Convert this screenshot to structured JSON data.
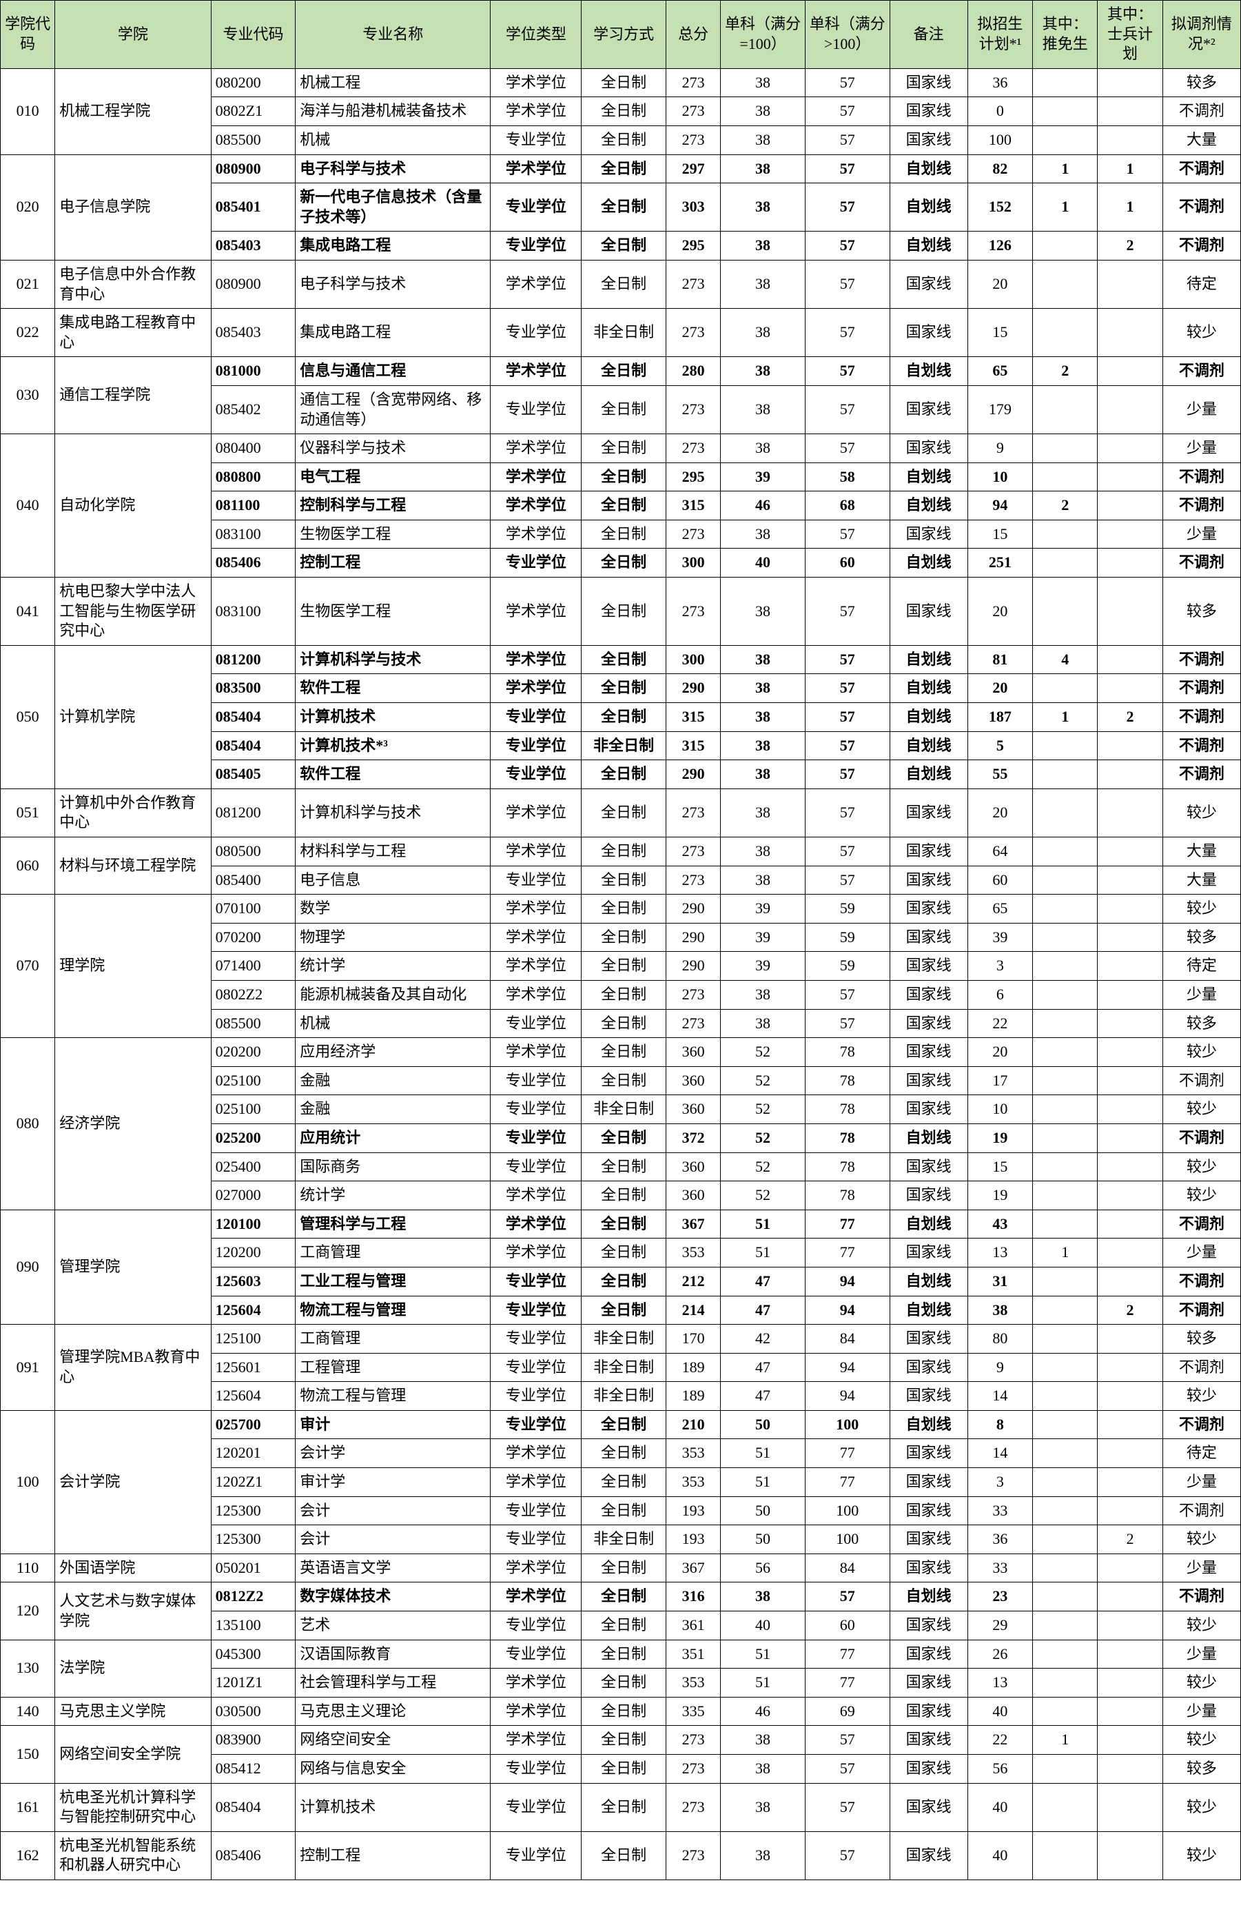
{
  "headers": {
    "college_code": "学院代码",
    "college": "学院",
    "major_code": "专业代码",
    "major_name": "专业名称",
    "degree_type": "学位类型",
    "study_mode": "学习方式",
    "total": "总分",
    "single_le100": "单科（满分=100）",
    "single_gt100": "单科（满分>100）",
    "remark": "备注",
    "plan": "拟招生计划*¹",
    "rec": "其中：推免生",
    "sb": "其中：士兵计划",
    "adj": "拟调剂情况*²"
  },
  "groups": [
    {
      "code": "010",
      "college": "机械工程学院",
      "rows": [
        {
          "b": 0,
          "mc": "080200",
          "mn": "机械工程",
          "dt": "学术学位",
          "sm": "全日制",
          "t": "273",
          "s1": "38",
          "s2": "57",
          "rm": "国家线",
          "pl": "36",
          "rc": "",
          "sb": "",
          "ad": "较多"
        },
        {
          "b": 0,
          "mc": "0802Z1",
          "mn": "海洋与船港机械装备技术",
          "dt": "学术学位",
          "sm": "全日制",
          "t": "273",
          "s1": "38",
          "s2": "57",
          "rm": "国家线",
          "pl": "0",
          "rc": "",
          "sb": "",
          "ad": "不调剂"
        },
        {
          "b": 0,
          "mc": "085500",
          "mn": "机械",
          "dt": "专业学位",
          "sm": "全日制",
          "t": "273",
          "s1": "38",
          "s2": "57",
          "rm": "国家线",
          "pl": "100",
          "rc": "",
          "sb": "",
          "ad": "大量"
        }
      ]
    },
    {
      "code": "020",
      "college": "电子信息学院",
      "rows": [
        {
          "b": 1,
          "mc": "080900",
          "mn": "电子科学与技术",
          "dt": "学术学位",
          "sm": "全日制",
          "t": "297",
          "s1": "38",
          "s2": "57",
          "rm": "自划线",
          "pl": "82",
          "rc": "1",
          "sb": "1",
          "ad": "不调剂"
        },
        {
          "b": 1,
          "mc": "085401",
          "mn": "新一代电子信息技术（含量子技术等）",
          "dt": "专业学位",
          "sm": "全日制",
          "t": "303",
          "s1": "38",
          "s2": "57",
          "rm": "自划线",
          "pl": "152",
          "rc": "1",
          "sb": "1",
          "ad": "不调剂"
        },
        {
          "b": 1,
          "mc": "085403",
          "mn": "集成电路工程",
          "dt": "专业学位",
          "sm": "全日制",
          "t": "295",
          "s1": "38",
          "s2": "57",
          "rm": "自划线",
          "pl": "126",
          "rc": "",
          "sb": "2",
          "ad": "不调剂"
        }
      ]
    },
    {
      "code": "021",
      "college": "电子信息中外合作教育中心",
      "rows": [
        {
          "b": 0,
          "mc": "080900",
          "mn": "电子科学与技术",
          "dt": "学术学位",
          "sm": "全日制",
          "t": "273",
          "s1": "38",
          "s2": "57",
          "rm": "国家线",
          "pl": "20",
          "rc": "",
          "sb": "",
          "ad": "待定"
        }
      ]
    },
    {
      "code": "022",
      "college": "集成电路工程教育中心",
      "rows": [
        {
          "b": 0,
          "mc": "085403",
          "mn": "集成电路工程",
          "dt": "专业学位",
          "sm": "非全日制",
          "t": "273",
          "s1": "38",
          "s2": "57",
          "rm": "国家线",
          "pl": "15",
          "rc": "",
          "sb": "",
          "ad": "较少"
        }
      ]
    },
    {
      "code": "030",
      "college": "通信工程学院",
      "rows": [
        {
          "b": 1,
          "mc": "081000",
          "mn": "信息与通信工程",
          "dt": "学术学位",
          "sm": "全日制",
          "t": "280",
          "s1": "38",
          "s2": "57",
          "rm": "自划线",
          "pl": "65",
          "rc": "2",
          "sb": "",
          "ad": "不调剂"
        },
        {
          "b": 0,
          "mc": "085402",
          "mn": "通信工程（含宽带网络、移动通信等）",
          "dt": "专业学位",
          "sm": "全日制",
          "t": "273",
          "s1": "38",
          "s2": "57",
          "rm": "国家线",
          "pl": "179",
          "rc": "",
          "sb": "",
          "ad": "少量"
        }
      ]
    },
    {
      "code": "040",
      "college": "自动化学院",
      "rows": [
        {
          "b": 0,
          "mc": "080400",
          "mn": "仪器科学与技术",
          "dt": "学术学位",
          "sm": "全日制",
          "t": "273",
          "s1": "38",
          "s2": "57",
          "rm": "国家线",
          "pl": "9",
          "rc": "",
          "sb": "",
          "ad": "少量"
        },
        {
          "b": 1,
          "mc": "080800",
          "mn": "电气工程",
          "dt": "学术学位",
          "sm": "全日制",
          "t": "295",
          "s1": "39",
          "s2": "58",
          "rm": "自划线",
          "pl": "10",
          "rc": "",
          "sb": "",
          "ad": "不调剂"
        },
        {
          "b": 1,
          "mc": "081100",
          "mn": "控制科学与工程",
          "dt": "学术学位",
          "sm": "全日制",
          "t": "315",
          "s1": "46",
          "s2": "68",
          "rm": "自划线",
          "pl": "94",
          "rc": "2",
          "sb": "",
          "ad": "不调剂"
        },
        {
          "b": 0,
          "mc": "083100",
          "mn": "生物医学工程",
          "dt": "学术学位",
          "sm": "全日制",
          "t": "273",
          "s1": "38",
          "s2": "57",
          "rm": "国家线",
          "pl": "15",
          "rc": "",
          "sb": "",
          "ad": "少量"
        },
        {
          "b": 1,
          "mc": "085406",
          "mn": "控制工程",
          "dt": "专业学位",
          "sm": "全日制",
          "t": "300",
          "s1": "40",
          "s2": "60",
          "rm": "自划线",
          "pl": "251",
          "rc": "",
          "sb": "",
          "ad": "不调剂"
        }
      ]
    },
    {
      "code": "041",
      "college": "杭电巴黎大学中法人工智能与生物医学研究中心",
      "rows": [
        {
          "b": 0,
          "mc": "083100",
          "mn": "生物医学工程",
          "dt": "学术学位",
          "sm": "全日制",
          "t": "273",
          "s1": "38",
          "s2": "57",
          "rm": "国家线",
          "pl": "20",
          "rc": "",
          "sb": "",
          "ad": "较多"
        }
      ]
    },
    {
      "code": "050",
      "college": "计算机学院",
      "rows": [
        {
          "b": 1,
          "mc": "081200",
          "mn": "计算机科学与技术",
          "dt": "学术学位",
          "sm": "全日制",
          "t": "300",
          "s1": "38",
          "s2": "57",
          "rm": "自划线",
          "pl": "81",
          "rc": "4",
          "sb": "",
          "ad": "不调剂"
        },
        {
          "b": 1,
          "mc": "083500",
          "mn": "软件工程",
          "dt": "学术学位",
          "sm": "全日制",
          "t": "290",
          "s1": "38",
          "s2": "57",
          "rm": "自划线",
          "pl": "20",
          "rc": "",
          "sb": "",
          "ad": "不调剂"
        },
        {
          "b": 1,
          "mc": "085404",
          "mn": "计算机技术",
          "dt": "专业学位",
          "sm": "全日制",
          "t": "315",
          "s1": "38",
          "s2": "57",
          "rm": "自划线",
          "pl": "187",
          "rc": "1",
          "sb": "2",
          "ad": "不调剂"
        },
        {
          "b": 1,
          "mc": "085404",
          "mn": "计算机技术*³",
          "dt": "专业学位",
          "sm": "非全日制",
          "t": "315",
          "s1": "38",
          "s2": "57",
          "rm": "自划线",
          "pl": "5",
          "rc": "",
          "sb": "",
          "ad": "不调剂"
        },
        {
          "b": 1,
          "mc": "085405",
          "mn": "软件工程",
          "dt": "专业学位",
          "sm": "全日制",
          "t": "290",
          "s1": "38",
          "s2": "57",
          "rm": "自划线",
          "pl": "55",
          "rc": "",
          "sb": "",
          "ad": "不调剂"
        }
      ]
    },
    {
      "code": "051",
      "college": "计算机中外合作教育中心",
      "rows": [
        {
          "b": 0,
          "mc": "081200",
          "mn": "计算机科学与技术",
          "dt": "学术学位",
          "sm": "全日制",
          "t": "273",
          "s1": "38",
          "s2": "57",
          "rm": "国家线",
          "pl": "20",
          "rc": "",
          "sb": "",
          "ad": "较少"
        }
      ]
    },
    {
      "code": "060",
      "college": "材料与环境工程学院",
      "rows": [
        {
          "b": 0,
          "mc": "080500",
          "mn": "材料科学与工程",
          "dt": "学术学位",
          "sm": "全日制",
          "t": "273",
          "s1": "38",
          "s2": "57",
          "rm": "国家线",
          "pl": "64",
          "rc": "",
          "sb": "",
          "ad": "大量"
        },
        {
          "b": 0,
          "mc": "085400",
          "mn": "电子信息",
          "dt": "专业学位",
          "sm": "全日制",
          "t": "273",
          "s1": "38",
          "s2": "57",
          "rm": "国家线",
          "pl": "60",
          "rc": "",
          "sb": "",
          "ad": "大量"
        }
      ]
    },
    {
      "code": "070",
      "college": "理学院",
      "rows": [
        {
          "b": 0,
          "mc": "070100",
          "mn": "数学",
          "dt": "学术学位",
          "sm": "全日制",
          "t": "290",
          "s1": "39",
          "s2": "59",
          "rm": "国家线",
          "pl": "65",
          "rc": "",
          "sb": "",
          "ad": "较少"
        },
        {
          "b": 0,
          "mc": "070200",
          "mn": "物理学",
          "dt": "学术学位",
          "sm": "全日制",
          "t": "290",
          "s1": "39",
          "s2": "59",
          "rm": "国家线",
          "pl": "39",
          "rc": "",
          "sb": "",
          "ad": "较多"
        },
        {
          "b": 0,
          "mc": "071400",
          "mn": "统计学",
          "dt": "学术学位",
          "sm": "全日制",
          "t": "290",
          "s1": "39",
          "s2": "59",
          "rm": "国家线",
          "pl": "3",
          "rc": "",
          "sb": "",
          "ad": "待定"
        },
        {
          "b": 0,
          "mc": "0802Z2",
          "mn": "能源机械装备及其自动化",
          "dt": "学术学位",
          "sm": "全日制",
          "t": "273",
          "s1": "38",
          "s2": "57",
          "rm": "国家线",
          "pl": "6",
          "rc": "",
          "sb": "",
          "ad": "少量"
        },
        {
          "b": 0,
          "mc": "085500",
          "mn": "机械",
          "dt": "专业学位",
          "sm": "全日制",
          "t": "273",
          "s1": "38",
          "s2": "57",
          "rm": "国家线",
          "pl": "22",
          "rc": "",
          "sb": "",
          "ad": "较多"
        }
      ]
    },
    {
      "code": "080",
      "college": "经济学院",
      "rows": [
        {
          "b": 0,
          "mc": "020200",
          "mn": "应用经济学",
          "dt": "学术学位",
          "sm": "全日制",
          "t": "360",
          "s1": "52",
          "s2": "78",
          "rm": "国家线",
          "pl": "20",
          "rc": "",
          "sb": "",
          "ad": "较少"
        },
        {
          "b": 0,
          "mc": "025100",
          "mn": "金融",
          "dt": "专业学位",
          "sm": "全日制",
          "t": "360",
          "s1": "52",
          "s2": "78",
          "rm": "国家线",
          "pl": "17",
          "rc": "",
          "sb": "",
          "ad": "不调剂"
        },
        {
          "b": 0,
          "mc": "025100",
          "mn": "金融",
          "dt": "专业学位",
          "sm": "非全日制",
          "t": "360",
          "s1": "52",
          "s2": "78",
          "rm": "国家线",
          "pl": "10",
          "rc": "",
          "sb": "",
          "ad": "较少"
        },
        {
          "b": 1,
          "mc": "025200",
          "mn": "应用统计",
          "dt": "专业学位",
          "sm": "全日制",
          "t": "372",
          "s1": "52",
          "s2": "78",
          "rm": "自划线",
          "pl": "19",
          "rc": "",
          "sb": "",
          "ad": "不调剂"
        },
        {
          "b": 0,
          "mc": "025400",
          "mn": "国际商务",
          "dt": "专业学位",
          "sm": "全日制",
          "t": "360",
          "s1": "52",
          "s2": "78",
          "rm": "国家线",
          "pl": "15",
          "rc": "",
          "sb": "",
          "ad": "较少"
        },
        {
          "b": 0,
          "mc": "027000",
          "mn": "统计学",
          "dt": "学术学位",
          "sm": "全日制",
          "t": "360",
          "s1": "52",
          "s2": "78",
          "rm": "国家线",
          "pl": "19",
          "rc": "",
          "sb": "",
          "ad": "较少"
        }
      ]
    },
    {
      "code": "090",
      "college": "管理学院",
      "rows": [
        {
          "b": 1,
          "mc": "120100",
          "mn": "管理科学与工程",
          "dt": "学术学位",
          "sm": "全日制",
          "t": "367",
          "s1": "51",
          "s2": "77",
          "rm": "自划线",
          "pl": "43",
          "rc": "",
          "sb": "",
          "ad": "不调剂"
        },
        {
          "b": 0,
          "mc": "120200",
          "mn": "工商管理",
          "dt": "学术学位",
          "sm": "全日制",
          "t": "353",
          "s1": "51",
          "s2": "77",
          "rm": "国家线",
          "pl": "13",
          "rc": "1",
          "sb": "",
          "ad": "少量"
        },
        {
          "b": 1,
          "mc": "125603",
          "mn": "工业工程与管理",
          "dt": "专业学位",
          "sm": "全日制",
          "t": "212",
          "s1": "47",
          "s2": "94",
          "rm": "自划线",
          "pl": "31",
          "rc": "",
          "sb": "",
          "ad": "不调剂"
        },
        {
          "b": 1,
          "mc": "125604",
          "mn": "物流工程与管理",
          "dt": "专业学位",
          "sm": "全日制",
          "t": "214",
          "s1": "47",
          "s2": "94",
          "rm": "自划线",
          "pl": "38",
          "rc": "",
          "sb": "2",
          "ad": "不调剂"
        }
      ]
    },
    {
      "code": "091",
      "college": "管理学院MBA教育中心",
      "rows": [
        {
          "b": 0,
          "mc": "125100",
          "mn": "工商管理",
          "dt": "专业学位",
          "sm": "非全日制",
          "t": "170",
          "s1": "42",
          "s2": "84",
          "rm": "国家线",
          "pl": "80",
          "rc": "",
          "sb": "",
          "ad": "较多"
        },
        {
          "b": 0,
          "mc": "125601",
          "mn": "工程管理",
          "dt": "专业学位",
          "sm": "非全日制",
          "t": "189",
          "s1": "47",
          "s2": "94",
          "rm": "国家线",
          "pl": "9",
          "rc": "",
          "sb": "",
          "ad": "不调剂"
        },
        {
          "b": 0,
          "mc": "125604",
          "mn": "物流工程与管理",
          "dt": "专业学位",
          "sm": "非全日制",
          "t": "189",
          "s1": "47",
          "s2": "94",
          "rm": "国家线",
          "pl": "14",
          "rc": "",
          "sb": "",
          "ad": "较少"
        }
      ]
    },
    {
      "code": "100",
      "college": "会计学院",
      "rows": [
        {
          "b": 1,
          "mc": "025700",
          "mn": "审计",
          "dt": "专业学位",
          "sm": "全日制",
          "t": "210",
          "s1": "50",
          "s2": "100",
          "rm": "自划线",
          "pl": "8",
          "rc": "",
          "sb": "",
          "ad": "不调剂"
        },
        {
          "b": 0,
          "mc": "120201",
          "mn": "会计学",
          "dt": "学术学位",
          "sm": "全日制",
          "t": "353",
          "s1": "51",
          "s2": "77",
          "rm": "国家线",
          "pl": "14",
          "rc": "",
          "sb": "",
          "ad": "待定"
        },
        {
          "b": 0,
          "mc": "1202Z1",
          "mn": "审计学",
          "dt": "学术学位",
          "sm": "全日制",
          "t": "353",
          "s1": "51",
          "s2": "77",
          "rm": "国家线",
          "pl": "3",
          "rc": "",
          "sb": "",
          "ad": "少量"
        },
        {
          "b": 0,
          "mc": "125300",
          "mn": "会计",
          "dt": "专业学位",
          "sm": "全日制",
          "t": "193",
          "s1": "50",
          "s2": "100",
          "rm": "国家线",
          "pl": "33",
          "rc": "",
          "sb": "",
          "ad": "不调剂"
        },
        {
          "b": 0,
          "mc": "125300",
          "mn": "会计",
          "dt": "专业学位",
          "sm": "非全日制",
          "t": "193",
          "s1": "50",
          "s2": "100",
          "rm": "国家线",
          "pl": "36",
          "rc": "",
          "sb": "2",
          "ad": "较少"
        }
      ]
    },
    {
      "code": "110",
      "college": "外国语学院",
      "rows": [
        {
          "b": 0,
          "mc": "050201",
          "mn": "英语语言文学",
          "dt": "学术学位",
          "sm": "全日制",
          "t": "367",
          "s1": "56",
          "s2": "84",
          "rm": "国家线",
          "pl": "33",
          "rc": "",
          "sb": "",
          "ad": "少量"
        }
      ]
    },
    {
      "code": "120",
      "college": "人文艺术与数字媒体学院",
      "rows": [
        {
          "b": 1,
          "mc": "0812Z2",
          "mn": "数字媒体技术",
          "dt": "学术学位",
          "sm": "全日制",
          "t": "316",
          "s1": "38",
          "s2": "57",
          "rm": "自划线",
          "pl": "23",
          "rc": "",
          "sb": "",
          "ad": "不调剂"
        },
        {
          "b": 0,
          "mc": "135100",
          "mn": "艺术",
          "dt": "专业学位",
          "sm": "全日制",
          "t": "361",
          "s1": "40",
          "s2": "60",
          "rm": "国家线",
          "pl": "29",
          "rc": "",
          "sb": "",
          "ad": "较少"
        }
      ]
    },
    {
      "code": "130",
      "college": "法学院",
      "rows": [
        {
          "b": 0,
          "mc": "045300",
          "mn": "汉语国际教育",
          "dt": "专业学位",
          "sm": "全日制",
          "t": "351",
          "s1": "51",
          "s2": "77",
          "rm": "国家线",
          "pl": "26",
          "rc": "",
          "sb": "",
          "ad": "少量"
        },
        {
          "b": 0,
          "mc": "1201Z1",
          "mn": "社会管理科学与工程",
          "dt": "学术学位",
          "sm": "全日制",
          "t": "353",
          "s1": "51",
          "s2": "77",
          "rm": "国家线",
          "pl": "13",
          "rc": "",
          "sb": "",
          "ad": "较少"
        }
      ]
    },
    {
      "code": "140",
      "college": "马克思主义学院",
      "rows": [
        {
          "b": 0,
          "mc": "030500",
          "mn": "马克思主义理论",
          "dt": "学术学位",
          "sm": "全日制",
          "t": "335",
          "s1": "46",
          "s2": "69",
          "rm": "国家线",
          "pl": "40",
          "rc": "",
          "sb": "",
          "ad": "少量"
        }
      ]
    },
    {
      "code": "150",
      "college": "网络空间安全学院",
      "rows": [
        {
          "b": 0,
          "mc": "083900",
          "mn": "网络空间安全",
          "dt": "学术学位",
          "sm": "全日制",
          "t": "273",
          "s1": "38",
          "s2": "57",
          "rm": "国家线",
          "pl": "22",
          "rc": "1",
          "sb": "",
          "ad": "较少"
        },
        {
          "b": 0,
          "mc": "085412",
          "mn": "网络与信息安全",
          "dt": "专业学位",
          "sm": "全日制",
          "t": "273",
          "s1": "38",
          "s2": "57",
          "rm": "国家线",
          "pl": "56",
          "rc": "",
          "sb": "",
          "ad": "较多"
        }
      ]
    },
    {
      "code": "161",
      "college": "杭电圣光机计算科学与智能控制研究中心",
      "rows": [
        {
          "b": 0,
          "mc": "085404",
          "mn": "计算机技术",
          "dt": "专业学位",
          "sm": "全日制",
          "t": "273",
          "s1": "38",
          "s2": "57",
          "rm": "国家线",
          "pl": "40",
          "rc": "",
          "sb": "",
          "ad": "较少"
        }
      ]
    },
    {
      "code": "162",
      "college": "杭电圣光机智能系统和机器人研究中心",
      "rows": [
        {
          "b": 0,
          "mc": "085406",
          "mn": "控制工程",
          "dt": "专业学位",
          "sm": "全日制",
          "t": "273",
          "s1": "38",
          "s2": "57",
          "rm": "国家线",
          "pl": "40",
          "rc": "",
          "sb": "",
          "ad": "较少"
        }
      ]
    }
  ]
}
